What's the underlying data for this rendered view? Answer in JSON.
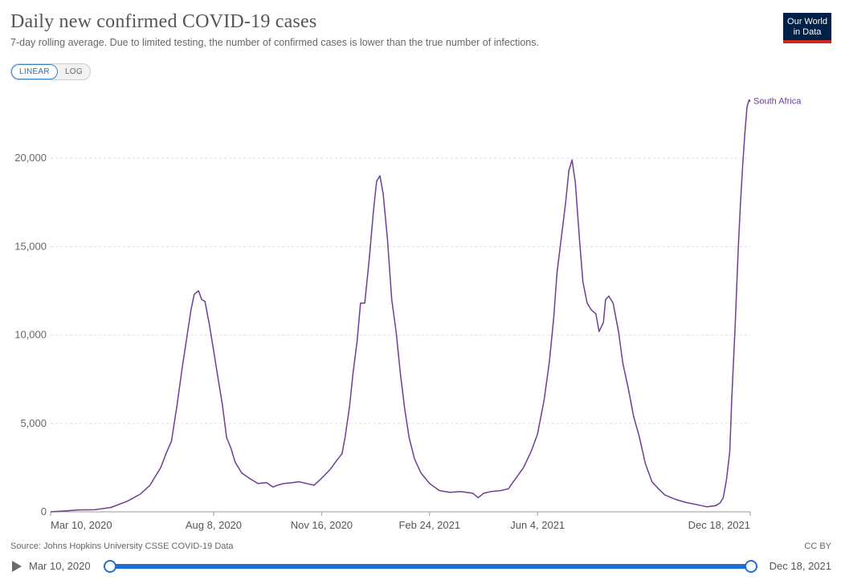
{
  "header": {
    "title": "Daily new confirmed COVID-19 cases",
    "subtitle": "7-day rolling average. Due to limited testing, the number of confirmed cases is lower than the true number of infections.",
    "logo_line1": "Our World",
    "logo_line2": "in Data"
  },
  "scale_toggle": {
    "linear_label": "LINEAR",
    "log_label": "LOG",
    "selected": "LINEAR"
  },
  "footer": {
    "source": "Source: Johns Hopkins University CSSE COVID-19 Data",
    "license": "CC BY"
  },
  "timeline": {
    "start_label": "Mar 10, 2020",
    "end_label": "Dec 18, 2021"
  },
  "colors": {
    "line": "#6d3e91",
    "grid": "#dddddd",
    "axis": "#999999",
    "track": "#1f6fd1"
  },
  "chart_data": {
    "type": "line",
    "title": "Daily new confirmed COVID-19 cases",
    "subtitle": "7-day rolling average. Due to limited testing, the number of confirmed cases is lower than the true number of infections.",
    "xlabel": "",
    "ylabel": "",
    "ylim": [
      0,
      23500
    ],
    "xlim": [
      "2020-03-10",
      "2021-12-18"
    ],
    "x_ticks": [
      "Mar 10, 2020",
      "Aug 8, 2020",
      "Nov 16, 2020",
      "Feb 24, 2021",
      "Jun 4, 2021",
      "Dec 18, 2021"
    ],
    "x_tick_dates": [
      "2020-03-10",
      "2020-08-08",
      "2020-11-16",
      "2021-02-24",
      "2021-06-04",
      "2021-12-18"
    ],
    "y_ticks": [
      0,
      5000,
      10000,
      15000,
      20000
    ],
    "y_tick_labels": [
      "0",
      "5,000",
      "10,000",
      "15,000",
      "20,000"
    ],
    "grid": "horizontal dashed",
    "legend": "line end label",
    "series": [
      {
        "name": "South Africa",
        "points": [
          [
            "2020-03-10",
            0
          ],
          [
            "2020-03-25",
            60
          ],
          [
            "2020-04-05",
            110
          ],
          [
            "2020-04-20",
            120
          ],
          [
            "2020-05-05",
            250
          ],
          [
            "2020-05-20",
            600
          ],
          [
            "2020-06-01",
            1000
          ],
          [
            "2020-06-10",
            1500
          ],
          [
            "2020-06-20",
            2500
          ],
          [
            "2020-06-25",
            3300
          ],
          [
            "2020-06-30",
            4000
          ],
          [
            "2020-07-05",
            6000
          ],
          [
            "2020-07-10",
            8200
          ],
          [
            "2020-07-14",
            9800
          ],
          [
            "2020-07-18",
            11400
          ],
          [
            "2020-07-21",
            12300
          ],
          [
            "2020-07-25",
            12500
          ],
          [
            "2020-07-28",
            12000
          ],
          [
            "2020-07-31",
            11900
          ],
          [
            "2020-08-04",
            10600
          ],
          [
            "2020-08-08",
            9100
          ],
          [
            "2020-08-12",
            7600
          ],
          [
            "2020-08-16",
            6100
          ],
          [
            "2020-08-20",
            4200
          ],
          [
            "2020-08-24",
            3600
          ],
          [
            "2020-08-28",
            2800
          ],
          [
            "2020-09-03",
            2200
          ],
          [
            "2020-09-10",
            1900
          ],
          [
            "2020-09-18",
            1600
          ],
          [
            "2020-09-26",
            1650
          ],
          [
            "2020-10-02",
            1400
          ],
          [
            "2020-10-06",
            1500
          ],
          [
            "2020-10-12",
            1600
          ],
          [
            "2020-10-20",
            1650
          ],
          [
            "2020-10-26",
            1700
          ],
          [
            "2020-11-02",
            1600
          ],
          [
            "2020-11-09",
            1500
          ],
          [
            "2020-11-16",
            1900
          ],
          [
            "2020-11-24",
            2400
          ],
          [
            "2020-11-30",
            2900
          ],
          [
            "2020-12-05",
            3300
          ],
          [
            "2020-12-08",
            4300
          ],
          [
            "2020-12-12",
            6000
          ],
          [
            "2020-12-15",
            7800
          ],
          [
            "2020-12-19",
            9700
          ],
          [
            "2020-12-22",
            11800
          ],
          [
            "2020-12-26",
            11800
          ],
          [
            "2020-12-30",
            14200
          ],
          [
            "2021-01-03",
            17000
          ],
          [
            "2021-01-06",
            18700
          ],
          [
            "2021-01-09",
            19000
          ],
          [
            "2021-01-12",
            18000
          ],
          [
            "2021-01-16",
            15400
          ],
          [
            "2021-01-20",
            12000
          ],
          [
            "2021-01-24",
            10200
          ],
          [
            "2021-01-28",
            7800
          ],
          [
            "2021-02-01",
            5800
          ],
          [
            "2021-02-05",
            4200
          ],
          [
            "2021-02-10",
            3000
          ],
          [
            "2021-02-16",
            2200
          ],
          [
            "2021-02-24",
            1600
          ],
          [
            "2021-03-05",
            1200
          ],
          [
            "2021-03-15",
            1100
          ],
          [
            "2021-03-25",
            1150
          ],
          [
            "2021-04-05",
            1050
          ],
          [
            "2021-04-10",
            800
          ],
          [
            "2021-04-15",
            1050
          ],
          [
            "2021-04-22",
            1150
          ],
          [
            "2021-05-01",
            1200
          ],
          [
            "2021-05-08",
            1300
          ],
          [
            "2021-05-15",
            1900
          ],
          [
            "2021-05-22",
            2500
          ],
          [
            "2021-05-29",
            3400
          ],
          [
            "2021-06-04",
            4400
          ],
          [
            "2021-06-10",
            6300
          ],
          [
            "2021-06-15",
            8500
          ],
          [
            "2021-06-19",
            11000
          ],
          [
            "2021-06-22",
            13500
          ],
          [
            "2021-06-26",
            15500
          ],
          [
            "2021-06-30",
            17500
          ],
          [
            "2021-07-03",
            19300
          ],
          [
            "2021-07-06",
            19900
          ],
          [
            "2021-07-09",
            18600
          ],
          [
            "2021-07-13",
            15300
          ],
          [
            "2021-07-16",
            13000
          ],
          [
            "2021-07-20",
            11800
          ],
          [
            "2021-07-24",
            11400
          ],
          [
            "2021-07-28",
            11200
          ],
          [
            "2021-07-31",
            10200
          ],
          [
            "2021-08-04",
            10700
          ],
          [
            "2021-08-06",
            12000
          ],
          [
            "2021-08-09",
            12200
          ],
          [
            "2021-08-13",
            11800
          ],
          [
            "2021-08-18",
            10200
          ],
          [
            "2021-08-22",
            8400
          ],
          [
            "2021-08-27",
            7000
          ],
          [
            "2021-09-01",
            5400
          ],
          [
            "2021-09-06",
            4300
          ],
          [
            "2021-09-12",
            2700
          ],
          [
            "2021-09-18",
            1700
          ],
          [
            "2021-09-24",
            1300
          ],
          [
            "2021-09-30",
            950
          ],
          [
            "2021-10-10",
            700
          ],
          [
            "2021-10-20",
            520
          ],
          [
            "2021-10-30",
            400
          ],
          [
            "2021-11-08",
            280
          ],
          [
            "2021-11-16",
            350
          ],
          [
            "2021-11-20",
            500
          ],
          [
            "2021-11-23",
            800
          ],
          [
            "2021-11-26",
            1800
          ],
          [
            "2021-11-29",
            3400
          ],
          [
            "2021-12-01",
            6500
          ],
          [
            "2021-12-04",
            10500
          ],
          [
            "2021-12-07",
            15000
          ],
          [
            "2021-12-09",
            17500
          ],
          [
            "2021-12-11",
            19600
          ],
          [
            "2021-12-13",
            21400
          ],
          [
            "2021-12-15",
            22900
          ],
          [
            "2021-12-17",
            23300
          ],
          [
            "2021-12-18",
            23200
          ]
        ]
      }
    ]
  }
}
